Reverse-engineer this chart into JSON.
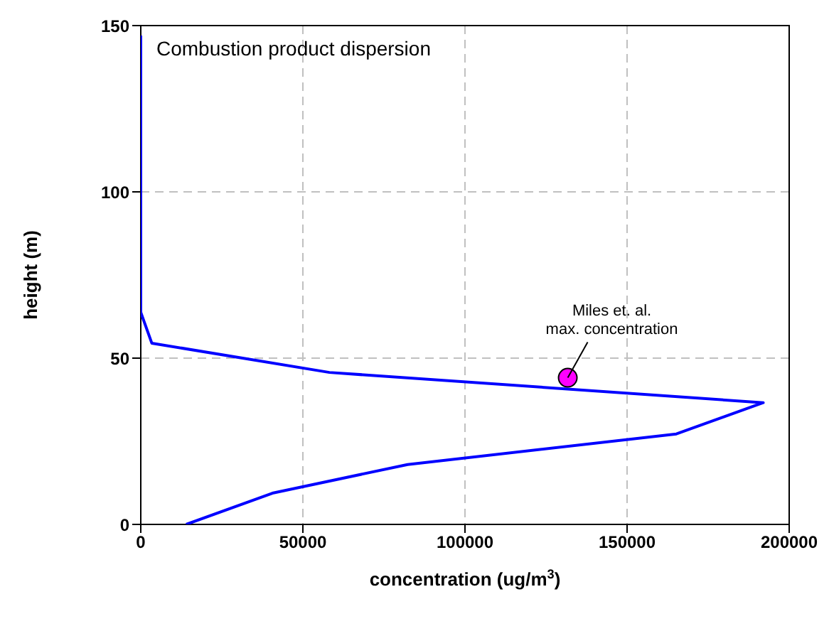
{
  "chart_data": {
    "type": "line",
    "title": "Combustion product dispersion",
    "xlabel": "concentration (ug/m$^{3}$)",
    "ylabel": "height (m)",
    "series": [
      {
        "marker": "none",
        "color": "#0000ff",
        "x": [
          14000,
          40600,
          82300,
          165200,
          192000,
          58200,
          3400,
          0,
          0
        ],
        "values": [
          0,
          9.4,
          18,
          27.2,
          36.6,
          45.7,
          54.5,
          63.8,
          147
        ]
      },
      {
        "type": "scatter",
        "marker": "circle",
        "color": "#ff00ff",
        "x": [
          131700
        ],
        "values": [
          44.1
        ]
      }
    ],
    "annotations": [
      {
        "text": "Miles et. al.\nmax. concentration",
        "x": 131700,
        "y": 44.1
      }
    ],
    "xlim": [
      0,
      200000
    ],
    "xticks": [
      0,
      50000,
      100000,
      150000,
      200000
    ],
    "ylim": [
      0,
      150
    ],
    "yticks": [
      0,
      50,
      100,
      150
    ],
    "grid": true,
    "line_style": "solid"
  }
}
